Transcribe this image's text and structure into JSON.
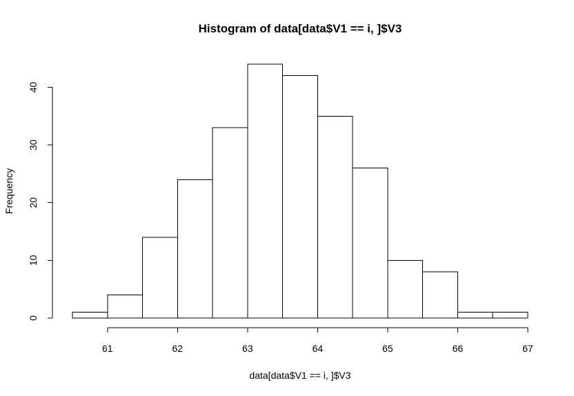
{
  "chart_data": {
    "type": "bar",
    "title": "Histogram of data[data$V1 == i, ]$V3",
    "xlabel": "data[data$V1 == i, ]$V3",
    "ylabel": "Frequency",
    "bins": [
      {
        "x0": 60.5,
        "x1": 61.0,
        "count": 1
      },
      {
        "x0": 61.0,
        "x1": 61.5,
        "count": 4
      },
      {
        "x0": 61.5,
        "x1": 62.0,
        "count": 14
      },
      {
        "x0": 62.0,
        "x1": 62.5,
        "count": 24
      },
      {
        "x0": 62.5,
        "x1": 63.0,
        "count": 33
      },
      {
        "x0": 63.0,
        "x1": 63.5,
        "count": 44
      },
      {
        "x0": 63.5,
        "x1": 64.0,
        "count": 42
      },
      {
        "x0": 64.0,
        "x1": 64.5,
        "count": 35
      },
      {
        "x0": 64.5,
        "x1": 65.0,
        "count": 26
      },
      {
        "x0": 65.0,
        "x1": 65.5,
        "count": 10
      },
      {
        "x0": 65.5,
        "x1": 66.0,
        "count": 8
      },
      {
        "x0": 66.0,
        "x1": 66.5,
        "count": 1
      },
      {
        "x0": 66.5,
        "x1": 67.0,
        "count": 1
      }
    ],
    "x_ticks": [
      61,
      62,
      63,
      64,
      65,
      66,
      67
    ],
    "y_ticks": [
      0,
      10,
      20,
      30,
      40
    ],
    "xlim": [
      60.5,
      67.0
    ],
    "ylim": [
      0,
      44
    ],
    "grid": false,
    "legend": "none",
    "bar_fill": "#ffffff",
    "bar_stroke": "#000000"
  }
}
